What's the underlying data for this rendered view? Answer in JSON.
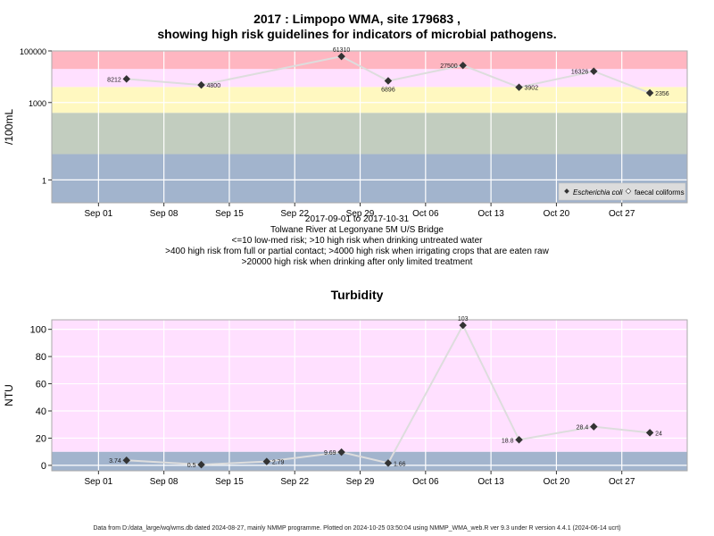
{
  "header": {
    "title_line1": "2017 : Limpopo WMA, site 179683 ,",
    "title_line2": "showing high risk guidelines for indicators of microbial pathogens."
  },
  "captions": {
    "date_range": "2017-09-01 to 2017-10-31",
    "site": "Tolwane River at Legonyane 5M U/S Bridge",
    "line1": "<=10 low-med risk; >10 high risk when drinking untreated water",
    "line2": ">400 high risk from full or partial contact; >4000 high risk when irrigating crops that are eaten raw",
    "line3": ">20000 high risk when drinking after only limited treatment"
  },
  "footer": "Data from D:/data_large/wq/wms.db dated 2024-08-27, mainly NMMP programme. Plotted on 2024-10-25 03:50:04 using NMMP_WMA_web.R ver 9.3 under R version 4.4.1 (2024-06-14 ucrt)",
  "colors": {
    "red_band": "#ffb6c1",
    "pink_band": "#ffe0ff",
    "yellow_band": "#fff8c0",
    "green_band": "#c2cdbf",
    "blue_band": "#a2b4cd",
    "line": "#dddddd",
    "marker": "#333333"
  },
  "chart_data": [
    {
      "type": "line",
      "title": "",
      "ylabel": "/100mL",
      "y_scale": "log",
      "ylim": [
        0.13,
        100000
      ],
      "y_ticks": [
        1,
        1000,
        100000
      ],
      "y_tick_labels": [
        "1",
        "1000",
        "100000"
      ],
      "xlim": [
        "2017-08-27",
        "2017-11-03"
      ],
      "x_ticks": [
        "2017-09-01",
        "2017-09-08",
        "2017-09-15",
        "2017-09-22",
        "2017-09-29",
        "2017-10-06",
        "2017-10-13",
        "2017-10-20",
        "2017-10-27"
      ],
      "x_tick_labels": [
        "Sep 01",
        "Sep 08",
        "Sep 15",
        "Sep 22",
        "Sep 29",
        "Oct 06",
        "Oct 13",
        "Oct 20",
        "Oct 27"
      ],
      "bands": [
        {
          "from": 0.13,
          "to": 10,
          "color": "blue_band"
        },
        {
          "from": 10,
          "to": 400,
          "color": "green_band"
        },
        {
          "from": 400,
          "to": 4000,
          "color": "yellow_band"
        },
        {
          "from": 4000,
          "to": 20000,
          "color": "pink_band"
        },
        {
          "from": 20000,
          "to": 100000,
          "color": "red_band"
        }
      ],
      "legend": {
        "placement": "bottom-right",
        "entries": [
          "Escherichia coli",
          "faecal coliforms"
        ]
      },
      "series": [
        {
          "name": "Escherichia coli",
          "x": [
            "2017-09-04",
            "2017-09-12",
            "2017-09-27",
            "2017-10-02",
            "2017-10-10",
            "2017-10-16",
            "2017-10-24",
            "2017-10-30"
          ],
          "values": [
            8212,
            4800,
            61310,
            6896,
            27500,
            3902,
            16326,
            2356
          ],
          "labels": [
            "8212",
            "4800",
            "61310",
            "6896",
            "27500",
            "3902",
            "16326",
            "2356"
          ],
          "label_sides": [
            "left",
            "right",
            "top",
            "bottom",
            "left",
            "right",
            "left",
            "right"
          ]
        }
      ]
    },
    {
      "type": "line",
      "title": "Turbidity",
      "ylabel": "NTU",
      "y_scale": "linear",
      "ylim": [
        -4,
        107
      ],
      "y_ticks": [
        0,
        20,
        40,
        60,
        80,
        100
      ],
      "y_tick_labels": [
        "0",
        "20",
        "40",
        "60",
        "80",
        "100"
      ],
      "xlim": [
        "2017-08-27",
        "2017-11-03"
      ],
      "x_ticks": [
        "2017-09-01",
        "2017-09-08",
        "2017-09-15",
        "2017-09-22",
        "2017-09-29",
        "2017-10-06",
        "2017-10-13",
        "2017-10-20",
        "2017-10-27"
      ],
      "x_tick_labels": [
        "Sep 01",
        "Sep 08",
        "Sep 15",
        "Sep 22",
        "Sep 29",
        "Oct 06",
        "Oct 13",
        "Oct 20",
        "Oct 27"
      ],
      "bands": [
        {
          "from": -4,
          "to": 10,
          "color": "blue_band"
        },
        {
          "from": 10,
          "to": 107,
          "color": "pink_band"
        }
      ],
      "series": [
        {
          "x": [
            "2017-09-04",
            "2017-09-12",
            "2017-09-19",
            "2017-09-27",
            "2017-10-02",
            "2017-10-10",
            "2017-10-16",
            "2017-10-24",
            "2017-10-30"
          ],
          "values": [
            3.74,
            0.5,
            2.79,
            9.69,
            1.66,
            103,
            18.8,
            28.4,
            24
          ],
          "labels": [
            "3.74",
            "0.5",
            "2.79",
            "9.69",
            "1.66",
            "103",
            "18.8",
            "28.4",
            "24"
          ],
          "label_sides": [
            "left",
            "left",
            "right",
            "left",
            "right",
            "top",
            "left",
            "left",
            "right"
          ]
        }
      ]
    }
  ]
}
